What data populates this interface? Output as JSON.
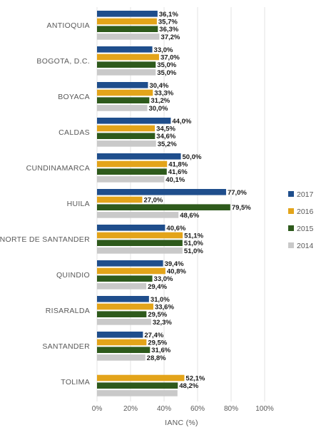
{
  "chart_data": {
    "type": "bar",
    "orientation": "horizontal",
    "title": "",
    "xlabel": "IANC (%)",
    "ylabel": "",
    "xlim": [
      0,
      100
    ],
    "x_ticks": [
      "0%",
      "20%",
      "40%",
      "60%",
      "80%",
      "100%"
    ],
    "grid": true,
    "legend_position": "right",
    "categories": [
      "ANTIOQUIA",
      "BOGOTA, D.C.",
      "BOYACA",
      "CALDAS",
      "CUNDINAMARCA",
      "HUILA",
      "NORTE DE SANTANDER",
      "QUINDIO",
      "RISARALDA",
      "SANTANDER",
      "TOLIMA"
    ],
    "series": [
      {
        "name": "2017",
        "color": "#1f4e8c",
        "values": [
          36.1,
          33.0,
          30.4,
          44.0,
          50.0,
          77.0,
          40.6,
          39.4,
          31.0,
          27.4,
          null
        ],
        "labels": [
          "36,1%",
          "33,0%",
          "30,4%",
          "44,0%",
          "50,0%",
          "77,0%",
          "40,6%",
          "39,4%",
          "31,0%",
          "27,4%",
          ""
        ]
      },
      {
        "name": "2016",
        "color": "#e3a41a",
        "values": [
          35.7,
          37.0,
          33.3,
          34.5,
          41.8,
          27.0,
          51.1,
          40.8,
          33.6,
          29.5,
          52.1
        ],
        "labels": [
          "35,7%",
          "37,0%",
          "33,3%",
          "34,5%",
          "41,8%",
          "27,0%",
          "51,1%",
          "40,8%",
          "33,6%",
          "29,5%",
          "52,1%"
        ]
      },
      {
        "name": "2015",
        "color": "#2e5a1c",
        "values": [
          36.3,
          35.0,
          31.2,
          34.6,
          41.6,
          79.5,
          51.0,
          33.0,
          29.5,
          31.6,
          48.2
        ],
        "labels": [
          "36,3%",
          "35,0%",
          "31,2%",
          "34,6%",
          "41,6%",
          "79,5%",
          "51,0%",
          "33,0%",
          "29,5%",
          "31,6%",
          "48,2%"
        ]
      },
      {
        "name": "2014",
        "color": "#c9c9c9",
        "values": [
          37.2,
          35.0,
          30.0,
          35.2,
          40.1,
          48.6,
          51.0,
          29.4,
          32.3,
          28.8,
          48.0
        ],
        "labels": [
          "37,2%",
          "35,0%",
          "30,0%",
          "35,2%",
          "40,1%",
          "48,6%",
          "51,0%",
          "29,4%",
          "32,3%",
          "28,8%",
          ""
        ]
      }
    ]
  }
}
